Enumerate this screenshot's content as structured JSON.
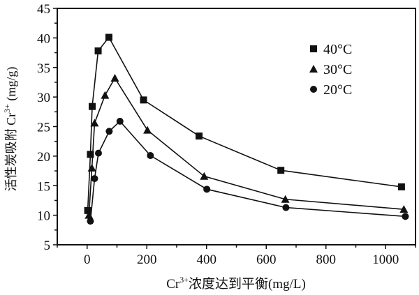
{
  "chart_data": {
    "type": "line",
    "title": "",
    "xlabel": "Cr³⁺浓度达到平衡(mg/L)",
    "xlabel_parts": {
      "base": "Cr",
      "sup": "3+",
      "rest": "浓度达到平衡(mg/L)"
    },
    "ylabel": "活性炭吸附 Cr³⁺ (mg/g)",
    "ylabel_parts": {
      "pre": "活性炭吸附 Cr",
      "sup": "3+",
      "rest": " (mg/g)"
    },
    "xlim": [
      -100,
      1100
    ],
    "ylim": [
      5,
      45
    ],
    "xticks": [
      0,
      200,
      400,
      600,
      800,
      1000
    ],
    "yticks": [
      5,
      10,
      15,
      20,
      25,
      30,
      35,
      40,
      45
    ],
    "grid": false,
    "legend_position": "top-right",
    "series": [
      {
        "name": "40°C",
        "marker": "square",
        "x": [
          2,
          11,
          17,
          37,
          73,
          189,
          375,
          649,
          1053
        ],
        "y": [
          10.8,
          20.3,
          28.4,
          37.8,
          40.1,
          29.5,
          23.4,
          17.6,
          14.8
        ]
      },
      {
        "name": "30°C",
        "marker": "triangle",
        "x": [
          6,
          16,
          25,
          60,
          93,
          202,
          392,
          664,
          1061
        ],
        "y": [
          10.0,
          18.0,
          25.6,
          30.3,
          33.2,
          24.4,
          16.6,
          12.7,
          11.0
        ]
      },
      {
        "name": "20°C",
        "marker": "circle",
        "x": [
          11,
          25,
          38,
          74,
          110,
          212,
          401,
          666,
          1066
        ],
        "y": [
          9.0,
          16.2,
          20.5,
          24.2,
          25.9,
          20.1,
          14.4,
          11.3,
          9.8
        ]
      }
    ]
  }
}
